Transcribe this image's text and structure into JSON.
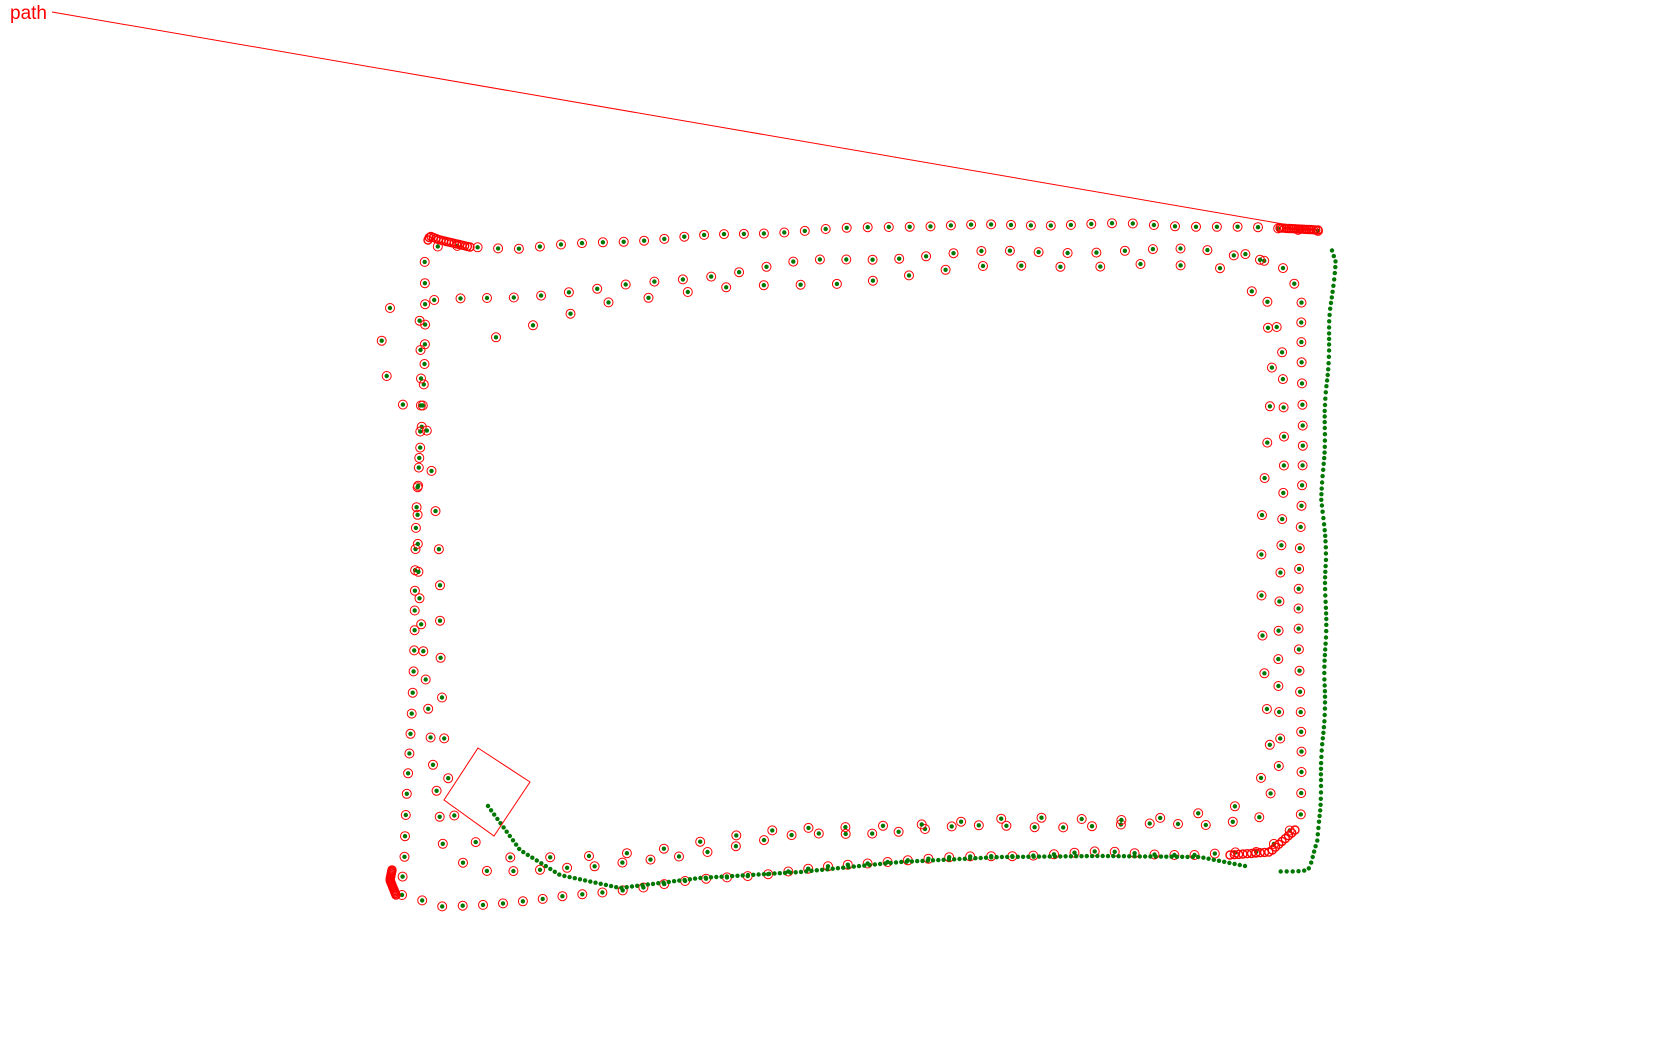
{
  "label": {
    "text": "path"
  },
  "colors": {
    "path": "#ff0000",
    "point_fill": "#007700",
    "ring": "#ff0000",
    "marker": "#ff0000"
  },
  "legend": {
    "note": ""
  }
}
